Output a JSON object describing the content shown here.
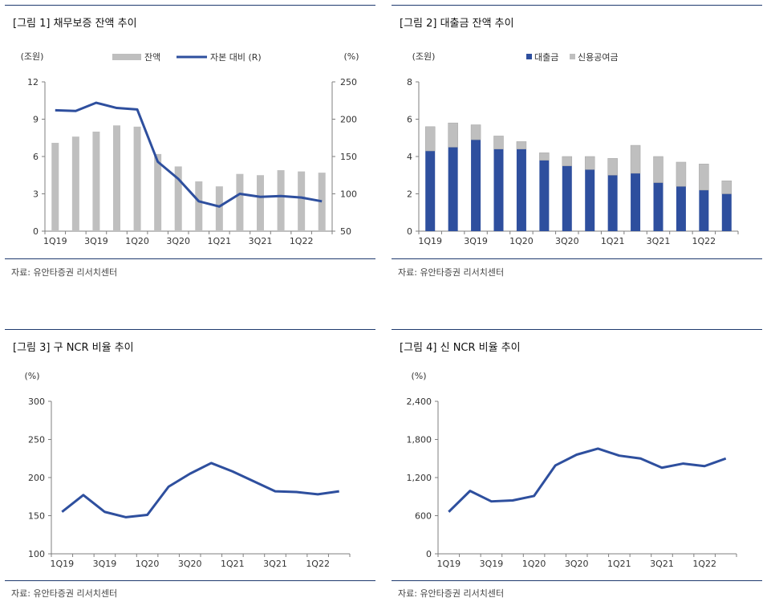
{
  "panels": [
    {
      "title": "[그림 1] 채무보증 잔액 추이",
      "source": "자료: 유안타증권 리서치센터",
      "chart_data": {
        "type": "bar+line",
        "categories": [
          "1Q19",
          "2Q19",
          "3Q19",
          "4Q19",
          "1Q20",
          "2Q20",
          "3Q20",
          "4Q20",
          "1Q21",
          "2Q21",
          "3Q21",
          "4Q21",
          "1Q22",
          "2Q22"
        ],
        "tick_labels": [
          "1Q19",
          "",
          "3Q19",
          "",
          "1Q20",
          "",
          "3Q20",
          "",
          "1Q21",
          "",
          "3Q21",
          "",
          "1Q22",
          ""
        ],
        "bars": {
          "name": "잔액",
          "values": [
            7.1,
            7.6,
            8.0,
            8.5,
            8.4,
            6.2,
            5.2,
            4.0,
            3.6,
            4.6,
            4.5,
            4.9,
            4.8,
            4.7
          ],
          "color": "#bfbfbf"
        },
        "line": {
          "name": "자본 대비 (R)",
          "values": [
            212,
            211,
            222,
            215,
            213,
            143,
            120,
            90,
            83,
            100,
            96,
            97,
            95,
            90
          ],
          "color": "#2e4f9e"
        },
        "y_left": {
          "unit": "(조원)",
          "min": 0,
          "max": 12,
          "ticks": [
            0,
            3,
            6,
            9,
            12
          ]
        },
        "y_right": {
          "unit": "(%)",
          "min": 50,
          "max": 250,
          "ticks": [
            50,
            100,
            150,
            200,
            250
          ]
        }
      }
    },
    {
      "title": "[그림 2] 대출금 잔액 추이",
      "source": "자료: 유안타증권 리서치센터",
      "chart_data": {
        "type": "stacked-bar",
        "categories": [
          "1Q19",
          "2Q19",
          "3Q19",
          "4Q19",
          "1Q20",
          "2Q20",
          "3Q20",
          "4Q20",
          "1Q21",
          "2Q21",
          "3Q21",
          "4Q21",
          "1Q22",
          "2Q22"
        ],
        "tick_labels": [
          "1Q19",
          "",
          "3Q19",
          "",
          "1Q20",
          "",
          "3Q20",
          "",
          "1Q21",
          "",
          "3Q21",
          "",
          "1Q22",
          ""
        ],
        "series": [
          {
            "name": "대출금",
            "values": [
              4.3,
              4.5,
              4.9,
              4.4,
              4.4,
              3.8,
              3.5,
              3.3,
              3.0,
              3.1,
              2.6,
              2.4,
              2.2,
              2.0
            ],
            "color": "#2e4f9e"
          },
          {
            "name": "신용공여금",
            "values": [
              1.3,
              1.3,
              0.8,
              0.7,
              0.4,
              0.4,
              0.5,
              0.7,
              0.9,
              1.5,
              1.4,
              1.3,
              1.4,
              0.7
            ],
            "color": "#bfbfbf"
          }
        ],
        "y": {
          "unit": "(조원)",
          "min": 0,
          "max": 8,
          "ticks": [
            0,
            2,
            4,
            6,
            8
          ]
        }
      }
    },
    {
      "title": "[그림 3] 구 NCR 비율 추이",
      "source": "자료: 유안타증권 리서치센터",
      "chart_data": {
        "type": "line",
        "categories": [
          "1Q19",
          "2Q19",
          "3Q19",
          "4Q19",
          "1Q20",
          "2Q20",
          "3Q20",
          "4Q20",
          "1Q21",
          "2Q21",
          "3Q21",
          "4Q21",
          "1Q22",
          "2Q22"
        ],
        "tick_labels": [
          "1Q19",
          "",
          "3Q19",
          "",
          "1Q20",
          "",
          "3Q20",
          "",
          "1Q21",
          "",
          "3Q21",
          "",
          "1Q22",
          ""
        ],
        "series": [
          {
            "name": "구 NCR",
            "values": [
              155,
              177,
              155,
              148,
              151,
              188,
              205,
              219,
              208,
              195,
              182,
              181,
              178,
              182
            ],
            "color": "#2e4f9e"
          }
        ],
        "y": {
          "unit": "(%)",
          "min": 100,
          "max": 300,
          "ticks": [
            100,
            150,
            200,
            250,
            300
          ]
        }
      }
    },
    {
      "title": "[그림 4] 신 NCR 비율 추이",
      "source": "자료: 유안타증권 리서치센터",
      "chart_data": {
        "type": "line",
        "categories": [
          "1Q19",
          "2Q19",
          "3Q19",
          "4Q19",
          "1Q20",
          "2Q20",
          "3Q20",
          "4Q20",
          "1Q21",
          "2Q21",
          "3Q21",
          "4Q21",
          "1Q22",
          "2Q22"
        ],
        "tick_labels": [
          "1Q19",
          "",
          "3Q19",
          "",
          "1Q20",
          "",
          "3Q20",
          "",
          "1Q21",
          "",
          "3Q21",
          "",
          "1Q22",
          ""
        ],
        "series": [
          {
            "name": "신 NCR",
            "values": [
              660,
              990,
              825,
              840,
              910,
              1390,
              1560,
              1655,
              1545,
              1500,
              1355,
              1420,
              1380,
              1500
            ],
            "color": "#2e4f9e"
          }
        ],
        "y": {
          "unit": "(%)",
          "min": 0,
          "max": 2400,
          "ticks": [
            "0",
            "600",
            "1,200",
            "1,800",
            "2,400"
          ],
          "tick_values": [
            0,
            600,
            1200,
            1800,
            2400
          ]
        }
      }
    }
  ]
}
